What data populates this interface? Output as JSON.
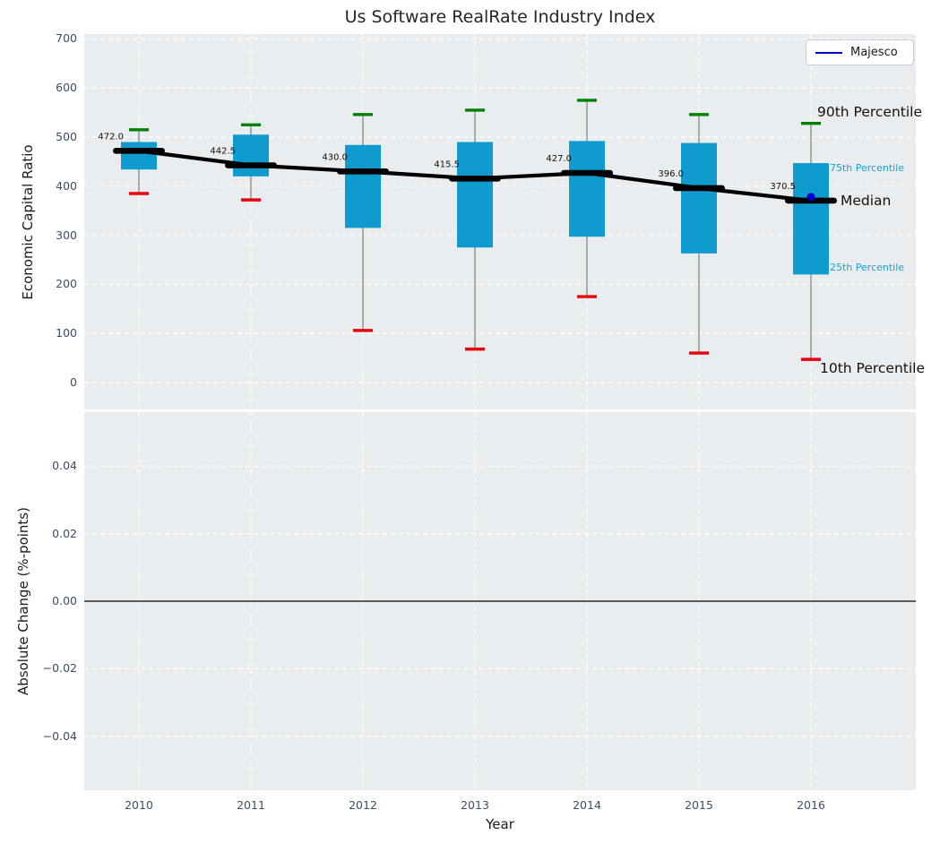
{
  "title": "Us Software RealRate Industry Index",
  "legend": {
    "label": "Majesco"
  },
  "colors": {
    "box": "#0f9bce",
    "median": "#000000",
    "p90_cap": "#008000",
    "p10_cap": "#e8000b",
    "whisker": "#7f7f7f",
    "majesco": "#0000cc",
    "plot_bg": "#e9edef",
    "grid": "#ffffff",
    "tick_text": "#3d4d66",
    "annotation_blue": "#1a9fd4",
    "label_text": "#111111"
  },
  "axes": {
    "top": {
      "ylabel": "Economic Capital Ratio",
      "tick_labels": [
        "700",
        "600",
        "500",
        "400",
        "300",
        "200",
        "100",
        "0"
      ],
      "tick_values": [
        700,
        600,
        500,
        400,
        300,
        200,
        100,
        0
      ]
    },
    "bottom": {
      "ylabel": "Absolute Change (%-points)",
      "tick_labels": [
        "0.04",
        "0.02",
        "0.00",
        "−0.02",
        "−0.04"
      ],
      "tick_values": [
        0.04,
        0.02,
        0,
        -0.02,
        -0.04
      ]
    },
    "xlabel": "Year"
  },
  "annotations": {
    "p90": "90th Percentile",
    "p75": "75th Percentile",
    "median": "Median",
    "p25": "25th Percentile",
    "p10": "10th Percentile"
  },
  "chart_data": [
    {
      "type": "boxplot",
      "title": "Us Software RealRate Industry Index",
      "xlabel": "Year",
      "ylabel": "Economic Capital Ratio",
      "categories": [
        "2010",
        "2011",
        "2012",
        "2013",
        "2014",
        "2015",
        "2016"
      ],
      "ylim": [
        -55,
        710
      ],
      "grid": true,
      "legend_position": "upper right",
      "series": [
        {
          "name": "90th Percentile",
          "values": [
            515,
            525,
            546,
            555,
            575,
            546,
            528
          ]
        },
        {
          "name": "75th Percentile",
          "values": [
            490,
            505,
            484,
            490,
            492,
            488,
            447
          ]
        },
        {
          "name": "Median",
          "values": [
            472.0,
            442.5,
            430.0,
            415.5,
            427.0,
            396.0,
            370.5
          ]
        },
        {
          "name": "25th Percentile",
          "values": [
            434,
            420,
            315,
            275,
            297,
            263,
            220
          ]
        },
        {
          "name": "10th Percentile",
          "values": [
            385,
            372,
            106,
            68,
            175,
            60,
            47
          ]
        },
        {
          "name": "Majesco",
          "values": [
            null,
            null,
            null,
            null,
            null,
            null,
            378
          ]
        }
      ],
      "median_labels": [
        "472.0",
        "442.5",
        "430.0",
        "415.5",
        "427.0",
        "396.0",
        "370.5"
      ]
    },
    {
      "type": "line",
      "ylabel": "Absolute Change (%-points)",
      "categories": [
        "2010",
        "2011",
        "2012",
        "2013",
        "2014",
        "2015",
        "2016"
      ],
      "ylim": [
        -0.056,
        0.056
      ],
      "yticks": [
        0.04,
        0.02,
        0,
        -0.02,
        -0.04
      ],
      "grid": true,
      "series": [],
      "zero_line": 0.0
    }
  ]
}
